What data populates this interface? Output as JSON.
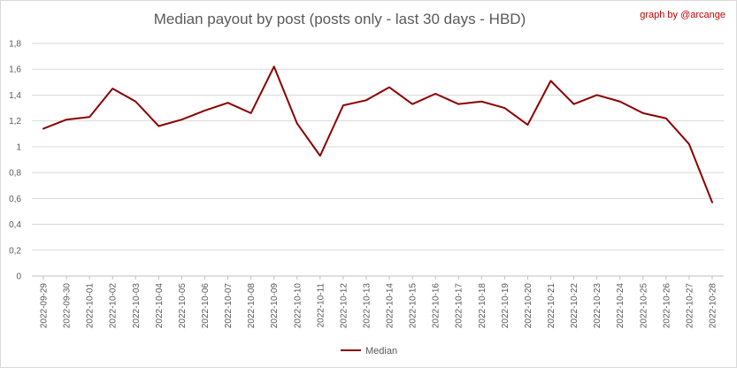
{
  "chart_data": {
    "type": "line",
    "title": "Median payout by post (posts only - last 30 days - HBD)",
    "credit": "graph by @arcange",
    "xlabel": "",
    "ylabel": "",
    "ylim": [
      0,
      1.8
    ],
    "y_ticks": [
      "0",
      "0,2",
      "0,4",
      "0,6",
      "0,8",
      "1",
      "1,2",
      "1,4",
      "1,6",
      "1,8"
    ],
    "grid": true,
    "legend_position": "bottom",
    "x": [
      "2022-09-29",
      "2022-09-30",
      "2022-10-01",
      "2022-10-02",
      "2022-10-03",
      "2022-10-04",
      "2022-10-05",
      "2022-10-06",
      "2022-10-07",
      "2022-10-08",
      "2022-10-09",
      "2022-10-10",
      "2022-10-11",
      "2022-10-12",
      "2022-10-13",
      "2022-10-14",
      "2022-10-15",
      "2022-10-16",
      "2022-10-17",
      "2022-10-18",
      "2022-10-19",
      "2022-10-20",
      "2022-10-21",
      "2022-10-22",
      "2022-10-23",
      "2022-10-24",
      "2022-10-25",
      "2022-10-26",
      "2022-10-27",
      "2022-10-28"
    ],
    "series": [
      {
        "name": "Median",
        "color": "#8b0000",
        "values": [
          1.14,
          1.21,
          1.23,
          1.45,
          1.35,
          1.16,
          1.21,
          1.28,
          1.34,
          1.26,
          1.62,
          1.18,
          0.93,
          1.32,
          1.36,
          1.46,
          1.33,
          1.41,
          1.33,
          1.35,
          1.3,
          1.17,
          1.51,
          1.33,
          1.4,
          1.35,
          1.26,
          1.22,
          1.02,
          0.57
        ]
      }
    ]
  }
}
